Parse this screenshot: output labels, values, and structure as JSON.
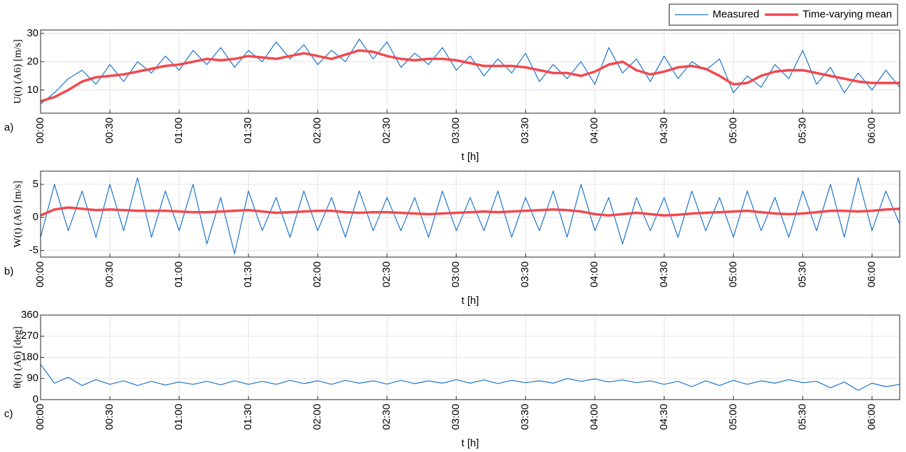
{
  "chart_data": [
    {
      "type": "line",
      "panel_label": "a)",
      "y_label": "U(t) (A6) [m/s]",
      "x_label": "t [h]",
      "legend": "above-right",
      "grid": true,
      "x": [
        0,
        0.1,
        0.2,
        0.3,
        0.4,
        0.5,
        0.6,
        0.7,
        0.8,
        0.9,
        1,
        1.1,
        1.2,
        1.3,
        1.4,
        1.5,
        1.6,
        1.7,
        1.8,
        1.9,
        2,
        2.1,
        2.2,
        2.3,
        2.4,
        2.5,
        2.6,
        2.7,
        2.8,
        2.9,
        3,
        3.1,
        3.2,
        3.3,
        3.4,
        3.5,
        3.6,
        3.7,
        3.8,
        3.9,
        4,
        4.1,
        4.2,
        4.3,
        4.4,
        4.5,
        4.6,
        4.7,
        4.8,
        4.9,
        5,
        5.1,
        5.2,
        5.3,
        5.4,
        5.5,
        5.6,
        5.7,
        5.8,
        5.9,
        6,
        6.1,
        6.2
      ],
      "xlim": [
        0,
        6.2
      ],
      "xticks": [
        {
          "value": 0,
          "label": "00:00"
        },
        {
          "value": 0.5,
          "label": "00:30"
        },
        {
          "value": 1,
          "label": "01:00"
        },
        {
          "value": 1.5,
          "label": "01:30"
        },
        {
          "value": 2,
          "label": "02:00"
        },
        {
          "value": 2.5,
          "label": "02:30"
        },
        {
          "value": 3,
          "label": "03:00"
        },
        {
          "value": 3.5,
          "label": "03:30"
        },
        {
          "value": 4,
          "label": "04:00"
        },
        {
          "value": 4.5,
          "label": "04:30"
        },
        {
          "value": 5,
          "label": "05:00"
        },
        {
          "value": 5.5,
          "label": "05:30"
        },
        {
          "value": 6,
          "label": "06:00"
        }
      ],
      "ylim": [
        1.8,
        31.2
      ],
      "yticks": [
        10,
        20,
        30
      ],
      "series": [
        {
          "name": "Measured",
          "color": "#1b74cc",
          "width": 1.2,
          "values": [
            5,
            9,
            14,
            17,
            12,
            19,
            13,
            20,
            16,
            22,
            17,
            24,
            19,
            25,
            18,
            24,
            20,
            27,
            21,
            26,
            19,
            24,
            20,
            28,
            21,
            27,
            18,
            23,
            19,
            25,
            17,
            22,
            15,
            21,
            16,
            23,
            13,
            19,
            14,
            20,
            12,
            25,
            16,
            21,
            13,
            22,
            14,
            20,
            17,
            21,
            9,
            15,
            11,
            19,
            14,
            24,
            12,
            18,
            9,
            16,
            10,
            17,
            11
          ]
        },
        {
          "name": "Time-varying mean",
          "color": "#f2484e",
          "width": 3.5,
          "values": [
            6,
            7.5,
            10,
            13,
            14.5,
            15,
            15.5,
            16.5,
            17.5,
            18.5,
            19,
            20,
            21,
            20.5,
            21,
            22,
            21.5,
            21,
            22,
            23,
            22,
            21,
            22.5,
            24,
            23.5,
            22,
            21,
            20.5,
            21,
            21,
            20.5,
            19.5,
            18.5,
            18.5,
            18.5,
            18,
            17,
            16,
            16,
            15,
            16.5,
            19,
            20,
            17,
            15.5,
            16.5,
            18,
            18.5,
            17.5,
            15,
            12,
            12.5,
            15,
            16.5,
            17,
            17,
            16,
            15,
            14,
            13,
            12.5,
            12.5,
            12.5
          ]
        }
      ]
    },
    {
      "type": "line",
      "panel_label": "b)",
      "y_label": "W(t) (A6) [m/s]",
      "x_label": "t [h]",
      "grid": true,
      "x": [
        0,
        0.1,
        0.2,
        0.3,
        0.4,
        0.5,
        0.6,
        0.7,
        0.8,
        0.9,
        1,
        1.1,
        1.2,
        1.3,
        1.4,
        1.5,
        1.6,
        1.7,
        1.8,
        1.9,
        2,
        2.1,
        2.2,
        2.3,
        2.4,
        2.5,
        2.6,
        2.7,
        2.8,
        2.9,
        3,
        3.1,
        3.2,
        3.3,
        3.4,
        3.5,
        3.6,
        3.7,
        3.8,
        3.9,
        4,
        4.1,
        4.2,
        4.3,
        4.4,
        4.5,
        4.6,
        4.7,
        4.8,
        4.9,
        5,
        5.1,
        5.2,
        5.3,
        5.4,
        5.5,
        5.6,
        5.7,
        5.8,
        5.9,
        6,
        6.1,
        6.2
      ],
      "xlim": [
        0,
        6.2
      ],
      "xticks": [
        {
          "value": 0,
          "label": "00:00"
        },
        {
          "value": 0.5,
          "label": "00:30"
        },
        {
          "value": 1,
          "label": "01:00"
        },
        {
          "value": 1.5,
          "label": "01:30"
        },
        {
          "value": 2,
          "label": "02:00"
        },
        {
          "value": 2.5,
          "label": "02:30"
        },
        {
          "value": 3,
          "label": "03:00"
        },
        {
          "value": 3.5,
          "label": "03:30"
        },
        {
          "value": 4,
          "label": "04:00"
        },
        {
          "value": 4.5,
          "label": "04:30"
        },
        {
          "value": 5,
          "label": "05:00"
        },
        {
          "value": 5.5,
          "label": "05:30"
        },
        {
          "value": 6,
          "label": "06:00"
        }
      ],
      "ylim": [
        -6,
        7
      ],
      "yticks": [
        -5,
        0,
        5
      ],
      "series": [
        {
          "color": "#1b74cc",
          "width": 1.2,
          "values": [
            -3,
            5,
            -2,
            4,
            -3,
            5,
            -2,
            6,
            -3,
            4,
            -2,
            5,
            -4,
            3,
            -5.5,
            4,
            -2,
            3,
            -3,
            4,
            -2,
            3,
            -3,
            4,
            -2,
            3,
            -2,
            3,
            -3,
            4,
            -2,
            3,
            -2,
            4,
            -3,
            3,
            -2,
            4,
            -3,
            5,
            -2,
            3,
            -4,
            3,
            -2,
            3,
            -3,
            4,
            -2,
            3,
            -3,
            4,
            -2,
            3,
            -3,
            4,
            -2,
            5,
            -3,
            6,
            -2,
            4,
            -1
          ]
        },
        {
          "color": "#f2484e",
          "width": 3.5,
          "values": [
            0.3,
            1.2,
            1.5,
            1.3,
            1.1,
            1.2,
            1.1,
            1,
            1,
            1,
            0.9,
            0.8,
            0.8,
            0.9,
            1,
            1.1,
            0.9,
            0.7,
            0.8,
            0.9,
            1,
            1,
            0.8,
            0.7,
            0.8,
            0.8,
            0.7,
            0.6,
            0.5,
            0.6,
            0.7,
            0.8,
            0.9,
            0.8,
            0.9,
            1,
            1.1,
            1.2,
            1.1,
            0.9,
            0.5,
            0.3,
            0.5,
            0.7,
            0.5,
            0.3,
            0.4,
            0.6,
            0.7,
            0.8,
            0.9,
            1,
            0.8,
            0.6,
            0.5,
            0.6,
            0.8,
            1,
            1,
            0.9,
            1,
            1.2,
            1.3
          ]
        }
      ]
    },
    {
      "type": "line",
      "panel_label": "c)",
      "y_label": "θ(t) (A6) [deg]",
      "x_label": "t [h]",
      "grid": true,
      "x": [
        0,
        0.1,
        0.2,
        0.3,
        0.4,
        0.5,
        0.6,
        0.7,
        0.8,
        0.9,
        1,
        1.1,
        1.2,
        1.3,
        1.4,
        1.5,
        1.6,
        1.7,
        1.8,
        1.9,
        2,
        2.1,
        2.2,
        2.3,
        2.4,
        2.5,
        2.6,
        2.7,
        2.8,
        2.9,
        3,
        3.1,
        3.2,
        3.3,
        3.4,
        3.5,
        3.6,
        3.7,
        3.8,
        3.9,
        4,
        4.1,
        4.2,
        4.3,
        4.4,
        4.5,
        4.6,
        4.7,
        4.8,
        4.9,
        5,
        5.1,
        5.2,
        5.3,
        5.4,
        5.5,
        5.6,
        5.7,
        5.8,
        5.9,
        6,
        6.1,
        6.2
      ],
      "xlim": [
        0,
        6.2
      ],
      "xticks": [
        {
          "value": 0,
          "label": "00:00"
        },
        {
          "value": 0.5,
          "label": "00:30"
        },
        {
          "value": 1,
          "label": "01:00"
        },
        {
          "value": 1.5,
          "label": "01:30"
        },
        {
          "value": 2,
          "label": "02:00"
        },
        {
          "value": 2.5,
          "label": "02:30"
        },
        {
          "value": 3,
          "label": "03:00"
        },
        {
          "value": 3.5,
          "label": "03:30"
        },
        {
          "value": 4,
          "label": "04:00"
        },
        {
          "value": 4.5,
          "label": "04:30"
        },
        {
          "value": 5,
          "label": "05:00"
        },
        {
          "value": 5.5,
          "label": "05:30"
        },
        {
          "value": 6,
          "label": "06:00"
        }
      ],
      "ylim": [
        0,
        360
      ],
      "yticks": [
        0,
        90,
        180,
        270,
        360
      ],
      "series": [
        {
          "color": "#1b74cc",
          "width": 1.2,
          "values": [
            150,
            70,
            95,
            60,
            85,
            65,
            80,
            60,
            78,
            62,
            75,
            65,
            78,
            63,
            80,
            65,
            78,
            65,
            82,
            68,
            80,
            65,
            82,
            70,
            80,
            66,
            82,
            68,
            80,
            70,
            85,
            70,
            84,
            68,
            82,
            72,
            80,
            70,
            90,
            78,
            88,
            75,
            84,
            72,
            80,
            65,
            78,
            55,
            80,
            60,
            82,
            65,
            80,
            70,
            85,
            72,
            78,
            50,
            75,
            40,
            70,
            55,
            65
          ]
        }
      ]
    }
  ]
}
